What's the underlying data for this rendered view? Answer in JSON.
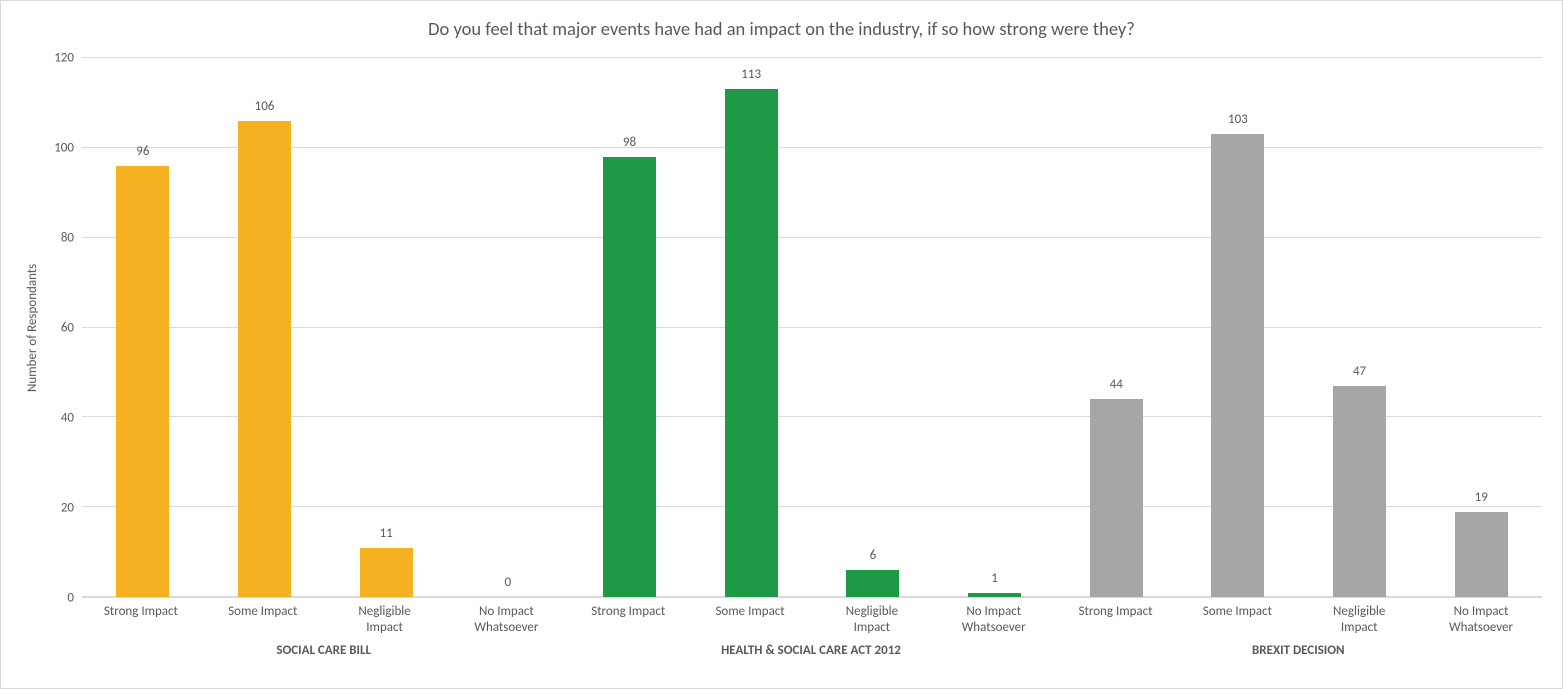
{
  "chart": {
    "type": "bar",
    "title": "Do you feel that major events have had an impact on the industry, if so how strong were they?",
    "title_fontsize": 18.5,
    "title_color": "#595959",
    "ylabel": "Number of Respondants",
    "ylabel_fontsize": 13,
    "y_axis": {
      "min": 0,
      "max": 120,
      "step": 20,
      "ticks": [
        0,
        20,
        40,
        60,
        80,
        100,
        120
      ]
    },
    "background_color": "#ffffff",
    "grid_color": "#d9d9d9",
    "axis_color": "#d9d9d9",
    "tick_color": "#d9d9d9",
    "text_color": "#595959",
    "tick_fontsize": 13,
    "label_fontsize": 13,
    "group_label_fontsize": 13,
    "bar_label_fontsize": 13,
    "bar_width_ratio": 0.435,
    "groups": [
      {
        "name": "SOCIAL CARE BILL",
        "color": "#f4b223",
        "bars": [
          {
            "category": "Strong Impact",
            "value": 96
          },
          {
            "category": "Some Impact",
            "value": 106
          },
          {
            "category": "Negligible Impact",
            "value": 11
          },
          {
            "category": "No Impact Whatsoever",
            "value": 0
          }
        ]
      },
      {
        "name": "HEALTH & SOCIAL CARE ACT 2012",
        "color": "#1e9a47",
        "bars": [
          {
            "category": "Strong Impact",
            "value": 98
          },
          {
            "category": "Some Impact",
            "value": 113
          },
          {
            "category": "Negligible Impact",
            "value": 6
          },
          {
            "category": "No Impact Whatsoever",
            "value": 1
          }
        ]
      },
      {
        "name": "BREXIT DECISION",
        "color": "#a6a6a6",
        "bars": [
          {
            "category": "Strong Impact",
            "value": 44
          },
          {
            "category": "Some Impact",
            "value": 103
          },
          {
            "category": "Negligible Impact",
            "value": 47
          },
          {
            "category": "No Impact Whatsoever",
            "value": 19
          }
        ]
      }
    ]
  }
}
